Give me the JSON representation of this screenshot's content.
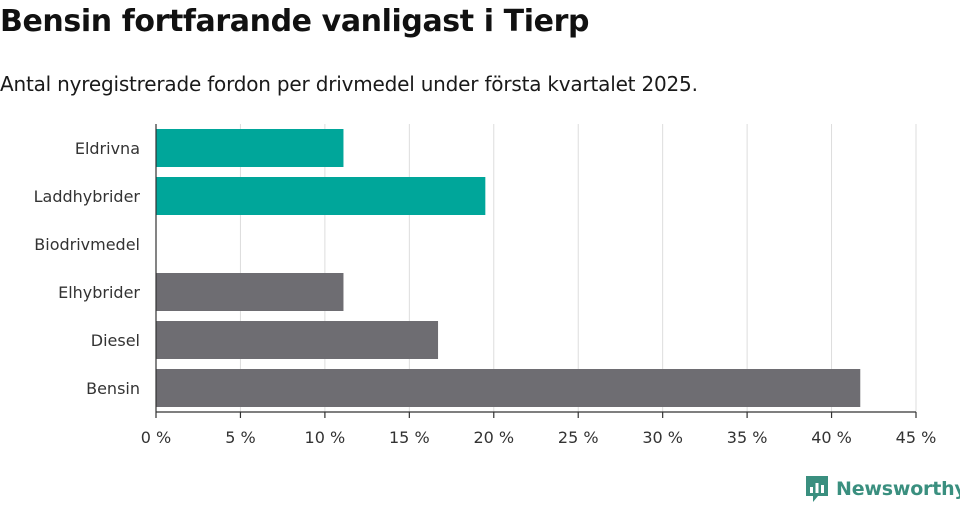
{
  "header": {
    "title": "Bensin fortfarande vanligast i Tierp",
    "subtitle": "Antal nyregistrerade fordon per drivmedel under första kvartalet 2025."
  },
  "brand": {
    "name": "Newsworthy",
    "icon": "newsworthy-logo-icon",
    "color": "#3a8f7f"
  },
  "colors": {
    "highlight": "#00a69a",
    "default": "#6e6d72",
    "grid": "#dddddd",
    "axis": "#333333"
  },
  "chart_data": {
    "type": "bar",
    "orientation": "horizontal",
    "categories": [
      "Eldrivna",
      "Laddhybrider",
      "Biodrivmedel",
      "Elhybrider",
      "Diesel",
      "Bensin"
    ],
    "values": [
      11.1,
      19.5,
      0,
      11.1,
      16.7,
      41.7
    ],
    "bar_colors": [
      "#00a69a",
      "#00a69a",
      "#00a69a",
      "#6e6d72",
      "#6e6d72",
      "#6e6d72"
    ],
    "xlim": [
      0,
      45
    ],
    "xticks": [
      0,
      5,
      10,
      15,
      20,
      25,
      30,
      35,
      40,
      45
    ],
    "xtick_labels": [
      "0 %",
      "5 %",
      "10 %",
      "15 %",
      "20 %",
      "25 %",
      "30 %",
      "35 %",
      "40 %",
      "45 %"
    ],
    "grid": true,
    "xlabel": "",
    "ylabel": ""
  }
}
